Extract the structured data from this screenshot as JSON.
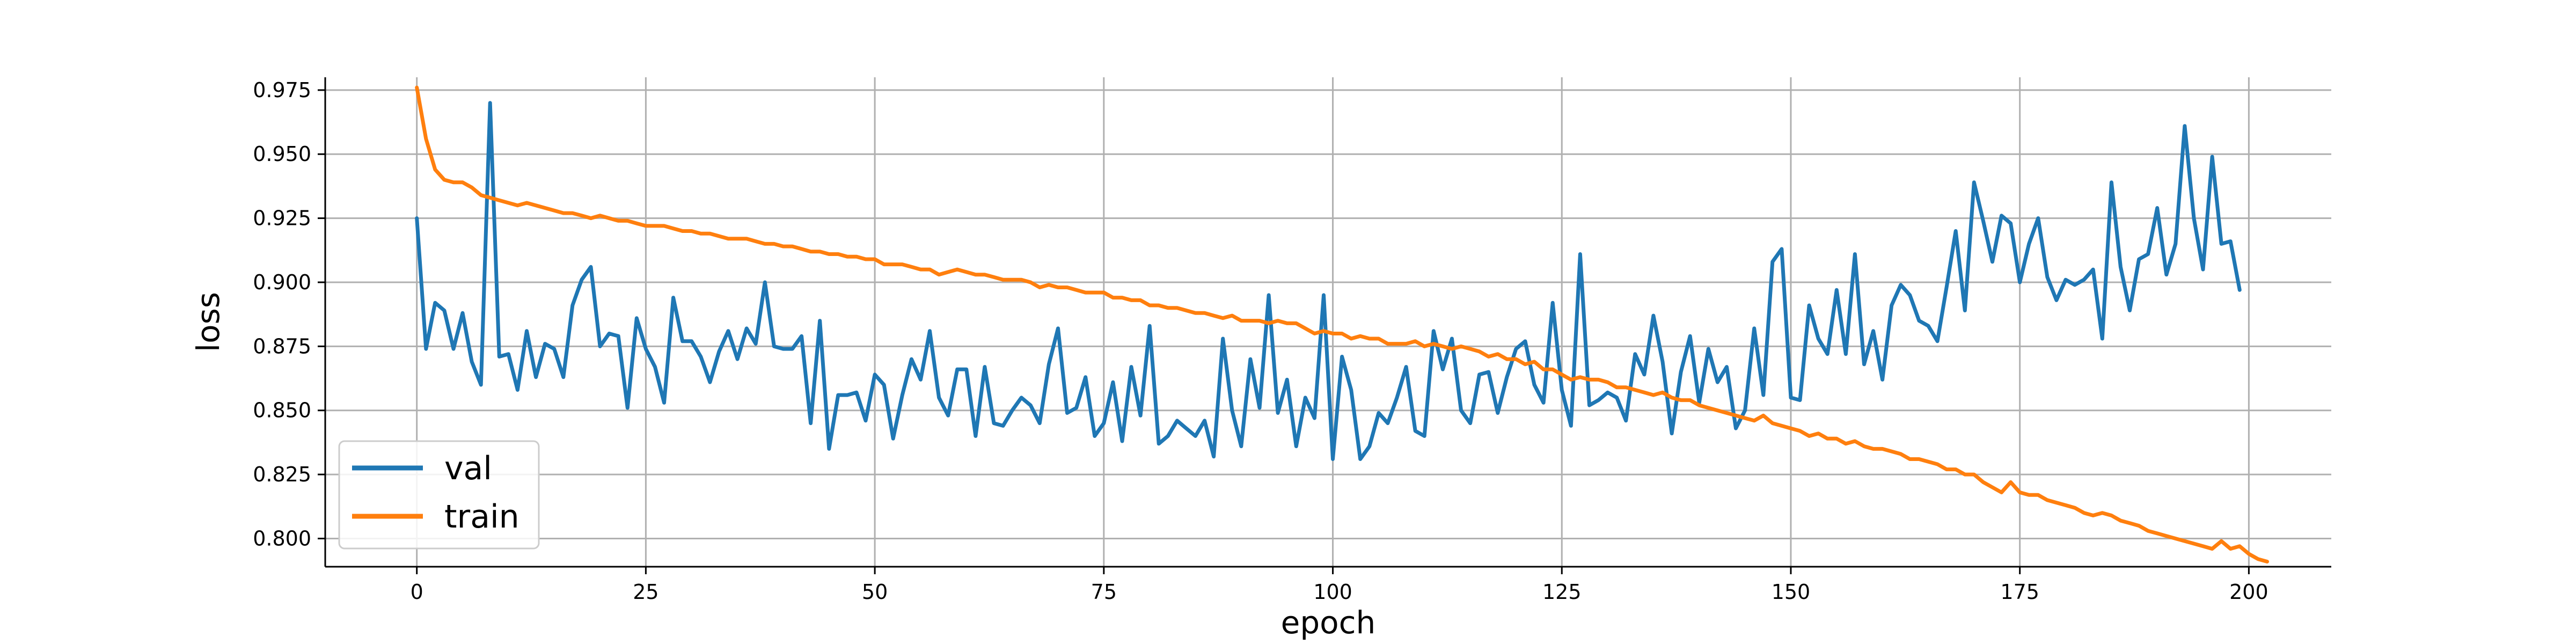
{
  "chart_data": {
    "type": "line",
    "xlabel": "epoch",
    "ylabel": "loss",
    "xlim": [
      -10,
      209
    ],
    "ylim": [
      0.789,
      0.98
    ],
    "xticks": [
      0,
      25,
      50,
      75,
      100,
      125,
      150,
      175,
      200
    ],
    "xtick_labels": [
      "0",
      "25",
      "50",
      "75",
      "100",
      "125",
      "150",
      "175",
      "200"
    ],
    "yticks": [
      0.8,
      0.825,
      0.85,
      0.875,
      0.9,
      0.925,
      0.95,
      0.975
    ],
    "ytick_labels": [
      "0.800",
      "0.825",
      "0.850",
      "0.875",
      "0.900",
      "0.925",
      "0.950",
      "0.975"
    ],
    "grid": true,
    "legend_position": "lower-left",
    "series": [
      {
        "name": "val",
        "color": "#1f77b4",
        "x_start": 0,
        "values": [
          0.925,
          0.874,
          0.892,
          0.889,
          0.874,
          0.888,
          0.869,
          0.86,
          0.97,
          0.871,
          0.872,
          0.858,
          0.881,
          0.863,
          0.876,
          0.874,
          0.863,
          0.891,
          0.901,
          0.906,
          0.875,
          0.88,
          0.879,
          0.851,
          0.886,
          0.874,
          0.867,
          0.853,
          0.894,
          0.877,
          0.877,
          0.871,
          0.861,
          0.873,
          0.881,
          0.87,
          0.882,
          0.876,
          0.9,
          0.875,
          0.874,
          0.874,
          0.879,
          0.845,
          0.885,
          0.835,
          0.856,
          0.856,
          0.857,
          0.846,
          0.864,
          0.86,
          0.839,
          0.856,
          0.87,
          0.862,
          0.881,
          0.855,
          0.848,
          0.866,
          0.866,
          0.84,
          0.867,
          0.845,
          0.844,
          0.85,
          0.855,
          0.852,
          0.845,
          0.868,
          0.882,
          0.849,
          0.851,
          0.863,
          0.84,
          0.845,
          0.861,
          0.838,
          0.867,
          0.848,
          0.883,
          0.837,
          0.84,
          0.846,
          0.843,
          0.84,
          0.846,
          0.832,
          0.878,
          0.85,
          0.836,
          0.87,
          0.851,
          0.895,
          0.849,
          0.862,
          0.836,
          0.855,
          0.847,
          0.895,
          0.831,
          0.871,
          0.858,
          0.831,
          0.836,
          0.849,
          0.845,
          0.855,
          0.867,
          0.842,
          0.84,
          0.881,
          0.866,
          0.878,
          0.85,
          0.845,
          0.864,
          0.865,
          0.849,
          0.863,
          0.874,
          0.877,
          0.86,
          0.853,
          0.892,
          0.858,
          0.844,
          0.911,
          0.852,
          0.854,
          0.857,
          0.855,
          0.846,
          0.872,
          0.864,
          0.887,
          0.869,
          0.841,
          0.865,
          0.879,
          0.853,
          0.874,
          0.861,
          0.867,
          0.843,
          0.85,
          0.882,
          0.856,
          0.908,
          0.913,
          0.855,
          0.854,
          0.891,
          0.878,
          0.872,
          0.897,
          0.872,
          0.911,
          0.868,
          0.881,
          0.862,
          0.891,
          0.899,
          0.895,
          0.885,
          0.883,
          0.877,
          0.898,
          0.92,
          0.889,
          0.939,
          0.924,
          0.908,
          0.926,
          0.923,
          0.9,
          0.915,
          0.925,
          0.902,
          0.893,
          0.901,
          0.899,
          0.901,
          0.905,
          0.878,
          0.939,
          0.906,
          0.889,
          0.909,
          0.911,
          0.929,
          0.903,
          0.915,
          0.961,
          0.925,
          0.905,
          0.949,
          0.915,
          0.916,
          0.897
        ]
      },
      {
        "name": "train",
        "color": "#ff7f0e",
        "x_start": 0,
        "values": [
          0.976,
          0.956,
          0.944,
          0.94,
          0.939,
          0.939,
          0.937,
          0.934,
          0.933,
          0.932,
          0.931,
          0.93,
          0.931,
          0.93,
          0.929,
          0.928,
          0.927,
          0.927,
          0.926,
          0.925,
          0.926,
          0.925,
          0.924,
          0.924,
          0.923,
          0.922,
          0.922,
          0.922,
          0.921,
          0.92,
          0.92,
          0.919,
          0.919,
          0.918,
          0.917,
          0.917,
          0.917,
          0.916,
          0.915,
          0.915,
          0.914,
          0.914,
          0.913,
          0.912,
          0.912,
          0.911,
          0.911,
          0.91,
          0.91,
          0.909,
          0.909,
          0.907,
          0.907,
          0.907,
          0.906,
          0.905,
          0.905,
          0.903,
          0.904,
          0.905,
          0.904,
          0.903,
          0.903,
          0.902,
          0.901,
          0.901,
          0.901,
          0.9,
          0.898,
          0.899,
          0.898,
          0.898,
          0.897,
          0.896,
          0.896,
          0.896,
          0.894,
          0.894,
          0.893,
          0.893,
          0.891,
          0.891,
          0.89,
          0.89,
          0.889,
          0.888,
          0.888,
          0.887,
          0.886,
          0.887,
          0.885,
          0.885,
          0.885,
          0.884,
          0.885,
          0.884,
          0.884,
          0.882,
          0.88,
          0.881,
          0.88,
          0.88,
          0.878,
          0.879,
          0.878,
          0.878,
          0.876,
          0.876,
          0.876,
          0.877,
          0.875,
          0.876,
          0.875,
          0.874,
          0.875,
          0.874,
          0.873,
          0.871,
          0.872,
          0.87,
          0.87,
          0.868,
          0.869,
          0.866,
          0.866,
          0.864,
          0.862,
          0.863,
          0.862,
          0.862,
          0.861,
          0.859,
          0.859,
          0.858,
          0.857,
          0.856,
          0.857,
          0.855,
          0.854,
          0.854,
          0.852,
          0.851,
          0.85,
          0.849,
          0.848,
          0.847,
          0.846,
          0.848,
          0.845,
          0.844,
          0.843,
          0.842,
          0.84,
          0.841,
          0.839,
          0.839,
          0.837,
          0.838,
          0.836,
          0.835,
          0.835,
          0.834,
          0.833,
          0.831,
          0.831,
          0.83,
          0.829,
          0.827,
          0.827,
          0.825,
          0.825,
          0.822,
          0.82,
          0.818,
          0.822,
          0.818,
          0.817,
          0.817,
          0.815,
          0.814,
          0.813,
          0.812,
          0.81,
          0.809,
          0.81,
          0.809,
          0.807,
          0.806,
          0.805,
          0.803,
          0.802,
          0.801,
          0.8,
          0.799,
          0.798,
          0.797,
          0.796,
          0.799,
          0.796,
          0.797,
          0.794,
          0.792,
          0.791
        ]
      }
    ]
  }
}
